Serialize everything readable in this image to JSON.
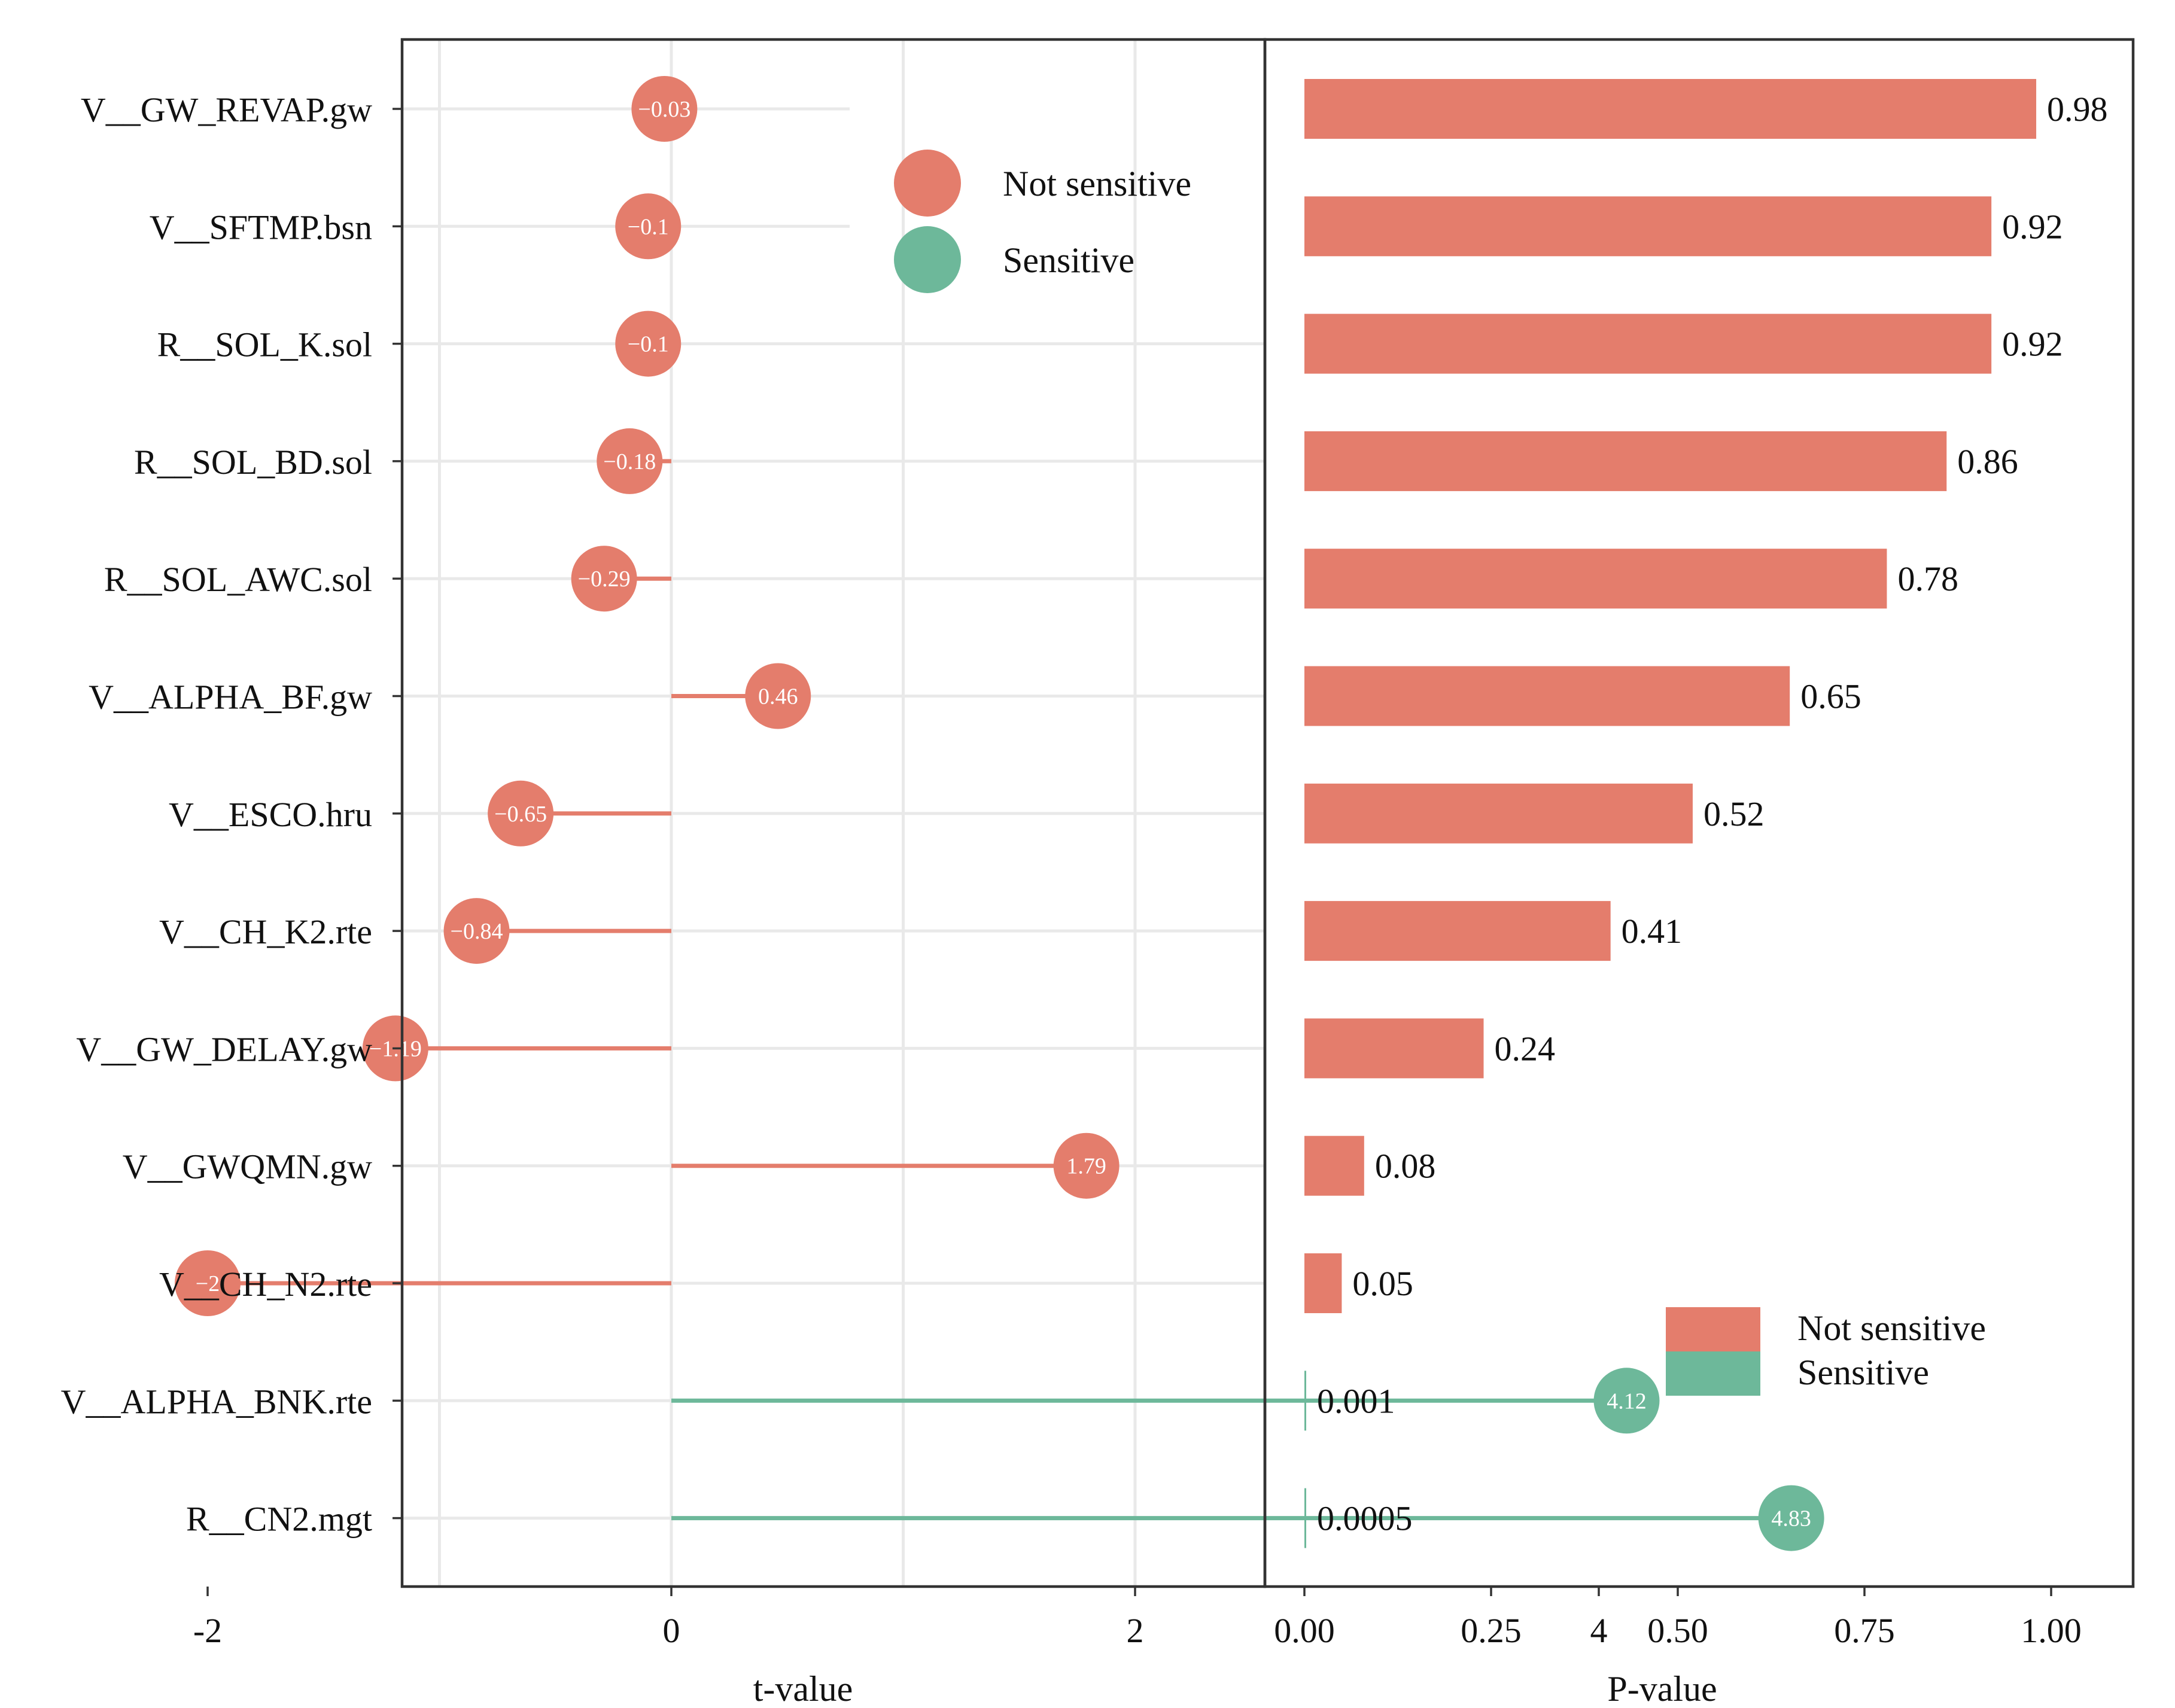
{
  "chart_data": [
    {
      "type": "lollipop",
      "xlabel": "t-value",
      "ylabel": "",
      "xlim": [
        -2.2,
        5.1
      ],
      "xticks": [
        "-2",
        "0",
        "2",
        "4"
      ],
      "grid": true,
      "legend": {
        "placement": "top-right",
        "entries": [
          {
            "label": "Not sensitive",
            "color": "#e47d6c"
          },
          {
            "label": "Sensitive",
            "color": "#6db89a"
          }
        ]
      },
      "categories": [
        "V__GW_REVAP.gw",
        "V__SFTMP.bsn",
        "R__SOL_K.sol",
        "R__SOL_BD.sol",
        "R__SOL_AWC.sol",
        "V__ALPHA_BF.gw",
        "V__ESCO.hru",
        "V__CH_K2.rte",
        "V__GW_DELAY.gw",
        "V__GWQMN.gw",
        "V__CH_N2.rte",
        "V__ALPHA_BNK.rte",
        "R__CN2.mgt"
      ],
      "values": [
        -0.03,
        -0.1,
        -0.1,
        -0.18,
        -0.29,
        0.46,
        -0.65,
        -0.84,
        -1.19,
        1.79,
        -2,
        4.12,
        4.83
      ],
      "value_labels": [
        "−0.03",
        "−0.1",
        "−0.1",
        "−0.18",
        "−0.29",
        "0.46",
        "−0.65",
        "−0.84",
        "−1.19",
        "1.79",
        "−2",
        "4.12",
        "4.83"
      ],
      "status": [
        "Not sensitive",
        "Not sensitive",
        "Not sensitive",
        "Not sensitive",
        "Not sensitive",
        "Not sensitive",
        "Not sensitive",
        "Not sensitive",
        "Not sensitive",
        "Not sensitive",
        "Not sensitive",
        "Sensitive",
        "Sensitive"
      ]
    },
    {
      "type": "bar",
      "orientation": "horizontal",
      "xlabel": "P-value",
      "ylabel": "",
      "xlim": [
        0,
        1.09
      ],
      "xticks": [
        "0.00",
        "0.25",
        "0.50",
        "0.75",
        "1.00"
      ],
      "grid": false,
      "legend": {
        "placement": "bottom-right",
        "entries": [
          {
            "label": "Not sensitive",
            "color": "#e47d6c"
          },
          {
            "label": "Sensitive",
            "color": "#6db89a"
          }
        ]
      },
      "categories": [
        "V__GW_REVAP.gw",
        "V__SFTMP.bsn",
        "R__SOL_K.sol",
        "R__SOL_BD.sol",
        "R__SOL_AWC.sol",
        "V__ALPHA_BF.gw",
        "V__ESCO.hru",
        "V__CH_K2.rte",
        "V__GW_DELAY.gw",
        "V__GWQMN.gw",
        "V__CH_N2.rte",
        "V__ALPHA_BNK.rte",
        "R__CN2.mgt"
      ],
      "values": [
        0.98,
        0.92,
        0.92,
        0.86,
        0.78,
        0.65,
        0.52,
        0.41,
        0.24,
        0.08,
        0.05,
        0.001,
        0.0005
      ],
      "value_labels": [
        "0.98",
        "0.92",
        "0.92",
        "0.86",
        "0.78",
        "0.65",
        "0.52",
        "0.41",
        "0.24",
        "0.08",
        "0.05",
        "0.001",
        "0.0005"
      ],
      "status": [
        "Not sensitive",
        "Not sensitive",
        "Not sensitive",
        "Not sensitive",
        "Not sensitive",
        "Not sensitive",
        "Not sensitive",
        "Not sensitive",
        "Not sensitive",
        "Not sensitive",
        "Not sensitive",
        "Sensitive",
        "Sensitive"
      ]
    }
  ]
}
